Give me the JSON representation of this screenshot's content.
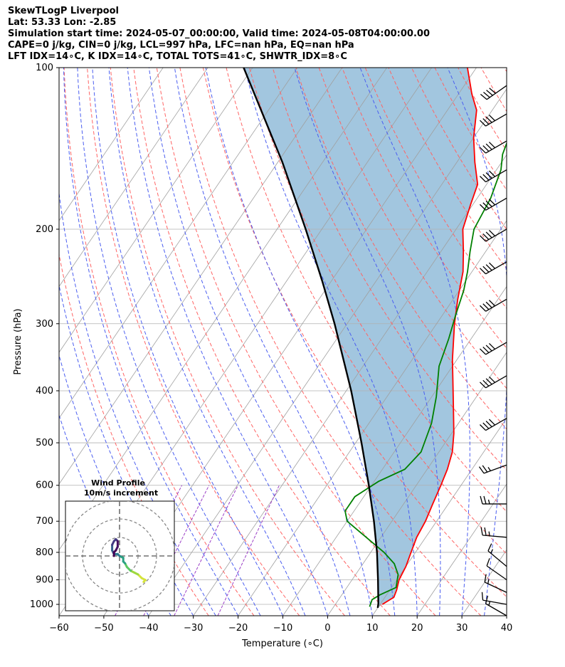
{
  "header": {
    "title": "SkewTLogP Liverpool",
    "location": "Lat: 53.33   Lon: -2.85",
    "times": "Simulation start time: 2024-05-07_00:00:00, Valid time: 2024-05-08T04:00:00.00",
    "indices_1": "CAPE=0 j/kg, CIN=0 j/kg, LCL=997 hPa, LFC=nan hPa, EQ=nan hPa",
    "indices_2": "LFT IDX=14∘C, K IDX=14∘C, TOTAL TOTS=41∘C, SHWTR_IDX=8∘C"
  },
  "chart_data": {
    "type": "skewt-logp",
    "xlabel": "Temperature (∘C)",
    "ylabel": "Pressure (hPa)",
    "xlim": [
      -60,
      40
    ],
    "ylim": [
      1050,
      100
    ],
    "x_ticks": [
      "−60",
      "−50",
      "−40",
      "−30",
      "−20",
      "−10",
      "0",
      "10",
      "20",
      "30",
      "40"
    ],
    "y_ticks": [
      "100",
      "200",
      "300",
      "400",
      "500",
      "600",
      "700",
      "800",
      "900",
      "1000"
    ],
    "colors": {
      "temperature": "#ff0000",
      "dewpoint": "#008000",
      "parcel": "#000000",
      "cape_fill": "#7aaed2",
      "dry_adiabat": "#ff6464",
      "moist_adiabat": "#4b5ef0",
      "mixing_ratio": "#9b3fc6",
      "isotherm": "#a0a0a0"
    },
    "series": [
      {
        "key": "temperature",
        "points": [
          [
            1000,
            10.5
          ],
          [
            970,
            12
          ],
          [
            940,
            11.5
          ],
          [
            900,
            10.5
          ],
          [
            850,
            10
          ],
          [
            800,
            9
          ],
          [
            750,
            8
          ],
          [
            700,
            7.5
          ],
          [
            650,
            6.5
          ],
          [
            600,
            5.5
          ],
          [
            560,
            4.5
          ],
          [
            520,
            3
          ],
          [
            480,
            0.5
          ],
          [
            430,
            -3.5
          ],
          [
            380,
            -8
          ],
          [
            350,
            -11
          ],
          [
            300,
            -16
          ],
          [
            270,
            -19
          ],
          [
            240,
            -22
          ],
          [
            220,
            -25
          ],
          [
            200,
            -28.5
          ],
          [
            180,
            -30.5
          ],
          [
            165,
            -32
          ],
          [
            150,
            -36
          ],
          [
            135,
            -40
          ],
          [
            120,
            -43.5
          ],
          [
            112,
            -47
          ],
          [
            100,
            -52
          ]
        ]
      },
      {
        "key": "dewpoint",
        "points": [
          [
            1010,
            8
          ],
          [
            980,
            7.5
          ],
          [
            960,
            8.5
          ],
          [
            930,
            11
          ],
          [
            880,
            9.5
          ],
          [
            840,
            7
          ],
          [
            800,
            3
          ],
          [
            700,
            -10
          ],
          [
            670,
            -12
          ],
          [
            630,
            -12
          ],
          [
            590,
            -9
          ],
          [
            560,
            -5
          ],
          [
            520,
            -4
          ],
          [
            460,
            -6
          ],
          [
            410,
            -9
          ],
          [
            360,
            -13
          ],
          [
            320,
            -15
          ],
          [
            290,
            -17
          ],
          [
            260,
            -19
          ],
          [
            240,
            -21
          ],
          [
            220,
            -23.5
          ],
          [
            200,
            -26
          ],
          [
            175,
            -27
          ],
          [
            155,
            -29
          ],
          [
            145,
            -31
          ],
          [
            120,
            -34
          ],
          [
            110,
            -36
          ],
          [
            100,
            -39
          ]
        ]
      },
      {
        "key": "parcel",
        "points": [
          [
            1015,
            10
          ],
          [
            997,
            9.5
          ],
          [
            900,
            5.8
          ],
          [
            800,
            1.4
          ],
          [
            700,
            -4
          ],
          [
            600,
            -10.6
          ],
          [
            500,
            -18.7
          ],
          [
            400,
            -28.9
          ],
          [
            300,
            -42.8
          ],
          [
            250,
            -52
          ],
          [
            200,
            -63.6
          ],
          [
            150,
            -79
          ],
          [
            100,
            -102
          ]
        ]
      }
    ],
    "wind_barbs": [
      {
        "p": 1050,
        "speed": 15,
        "dir": 300
      },
      {
        "p": 1000,
        "speed": 10,
        "dir": 280
      },
      {
        "p": 950,
        "speed": 15,
        "dir": 295
      },
      {
        "p": 900,
        "speed": 10,
        "dir": 305
      },
      {
        "p": 850,
        "speed": 15,
        "dir": 310
      },
      {
        "p": 750,
        "speed": 25,
        "dir": 275
      },
      {
        "p": 650,
        "speed": 25,
        "dir": 270
      },
      {
        "p": 550,
        "speed": 25,
        "dir": 250
      },
      {
        "p": 450,
        "speed": 40,
        "dir": 240
      },
      {
        "p": 375,
        "speed": 40,
        "dir": 240
      },
      {
        "p": 325,
        "speed": 40,
        "dir": 240
      },
      {
        "p": 270,
        "speed": 40,
        "dir": 240
      },
      {
        "p": 230,
        "speed": 40,
        "dir": 240
      },
      {
        "p": 200,
        "speed": 40,
        "dir": 240
      },
      {
        "p": 175,
        "speed": 40,
        "dir": 240
      },
      {
        "p": 155,
        "speed": 40,
        "dir": 240
      },
      {
        "p": 137,
        "speed": 40,
        "dir": 240
      },
      {
        "p": 122,
        "speed": 40,
        "dir": 240
      },
      {
        "p": 108,
        "speed": 40,
        "dir": 235
      }
    ],
    "hodograph": {
      "title": "Wind Profile",
      "subtitle": "10m/s increment",
      "ring_increment": 10,
      "rings": 3,
      "points": [
        [
          13,
          -14
        ],
        [
          14,
          -13
        ],
        [
          12,
          -12
        ],
        [
          10,
          -10
        ],
        [
          8,
          -9
        ],
        [
          6,
          -8
        ],
        [
          4,
          -6
        ],
        [
          3,
          -4
        ],
        [
          2,
          -3
        ],
        [
          2,
          -1
        ],
        [
          0,
          0
        ],
        [
          -1,
          1
        ],
        [
          -3,
          1
        ],
        [
          -4,
          3
        ],
        [
          -4,
          6
        ],
        [
          -3,
          8
        ],
        [
          -2,
          9
        ],
        [
          -1,
          8
        ],
        [
          -1,
          5
        ],
        [
          -2,
          3
        ],
        [
          -3,
          2
        ],
        [
          -3,
          0
        ]
      ]
    }
  }
}
